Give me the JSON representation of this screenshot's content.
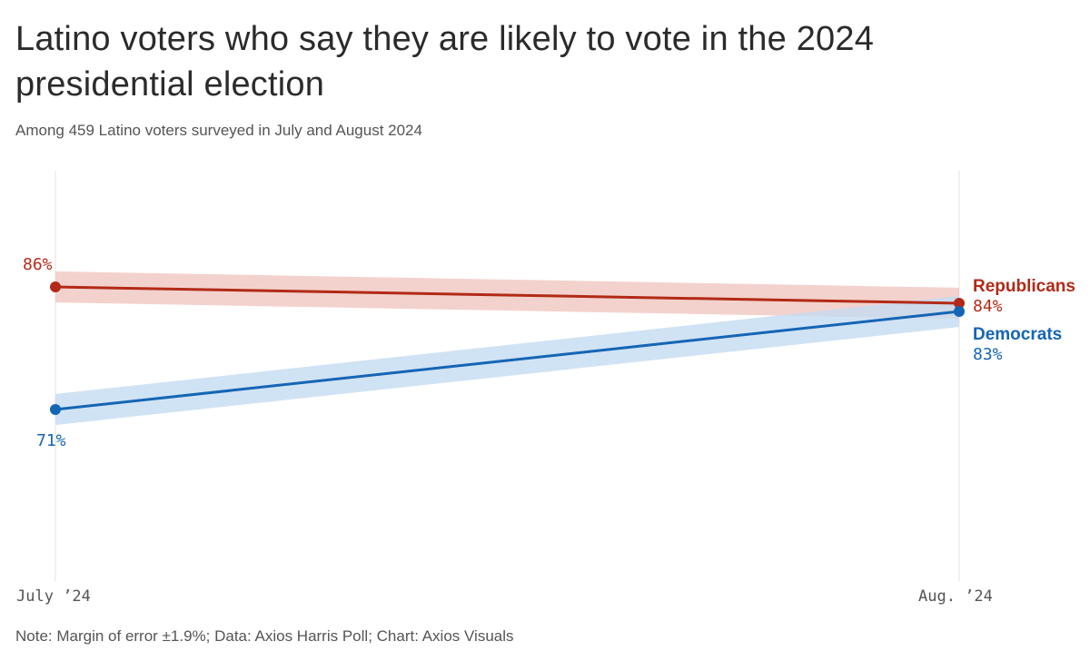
{
  "title": "Latino voters who say they are likely to vote in the 2024 presidential election",
  "subtitle": "Among 459 Latino voters surveyed in July and August 2024",
  "note": "Note: Margin of error ±1.9%; Data: Axios Harris Poll; Chart: Axios Visuals",
  "colors": {
    "republicans_line": "#b22a17",
    "republicans_band": "#efc5bf",
    "democrats_line": "#1565b5",
    "democrats_band": "#c3dbf1",
    "axis_line": "#e3e3e3"
  },
  "chart_data": {
    "type": "line",
    "title": "Latino voters who say they are likely to vote in the 2024 presidential election",
    "subtitle": "Among 459 Latino voters surveyed in July and August 2024",
    "x": [
      "July ’24",
      "Aug. ’24"
    ],
    "ylim": [
      60,
      94
    ],
    "grid": false,
    "legend": "right-end labels",
    "margin_of_error": 1.9,
    "series": [
      {
        "name": "Republicans",
        "values": [
          86,
          84
        ],
        "labels": [
          "86%",
          "84%"
        ],
        "color": "#b22a17",
        "band_color": "#efc5bf"
      },
      {
        "name": "Democrats",
        "values": [
          71,
          83
        ],
        "labels": [
          "71%",
          "83%"
        ],
        "color": "#1565b5",
        "band_color": "#c3dbf1"
      }
    ]
  }
}
